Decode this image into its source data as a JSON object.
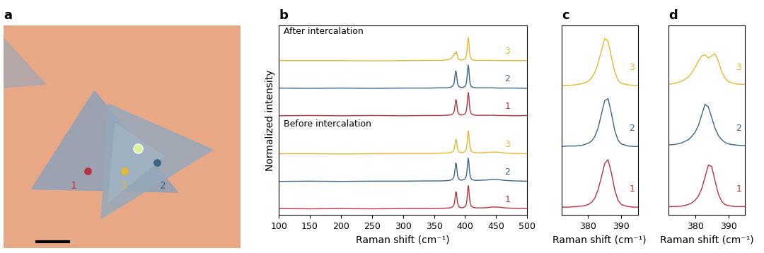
{
  "chart_data": [
    {
      "type": "image",
      "title": "a",
      "points": [
        {
          "label": "1",
          "color": "#b8323e"
        },
        {
          "label": "3",
          "color": "#e6b732"
        },
        {
          "label": "2",
          "color": "#3b6487"
        }
      ]
    },
    {
      "type": "line",
      "title": "b",
      "xlabel": "Raman shift (cm⁻¹)",
      "ylabel": "Normalized intensity",
      "tick_labels": "x",
      "xlim": [
        100,
        500
      ],
      "xticks": [
        100,
        150,
        200,
        250,
        300,
        350,
        400,
        450,
        500
      ],
      "ylim": [
        -0.25,
        7.7
      ],
      "x": [
        100,
        150,
        200,
        250,
        300,
        340,
        360,
        370,
        375,
        378,
        380,
        382,
        383,
        384,
        385,
        386,
        387,
        388,
        390,
        393,
        396,
        400,
        402,
        403,
        404,
        405,
        406,
        407,
        408,
        410,
        413,
        418,
        425,
        435,
        445,
        455,
        465,
        480,
        500
      ],
      "groups": [
        {
          "label": "After intercalation",
          "series": [
            {
              "name": "1",
              "color": "#b8323e",
              "offset": 3.9,
              "values": [
                0.01,
                0.02,
                0.01,
                0.02,
                0.01,
                0.02,
                0.02,
                0.03,
                0.04,
                0.06,
                0.09,
                0.16,
                0.28,
                0.48,
                0.68,
                0.64,
                0.4,
                0.2,
                0.08,
                0.04,
                0.05,
                0.09,
                0.22,
                0.42,
                0.72,
                0.98,
                0.84,
                0.48,
                0.24,
                0.09,
                0.05,
                0.03,
                0.03,
                0.03,
                0.03,
                0.02,
                0.02,
                0.01,
                0.02
              ]
            },
            {
              "name": "2",
              "color": "#3b6487",
              "offset": 5.05,
              "values": [
                0.02,
                0.01,
                0.02,
                0.01,
                0.02,
                0.02,
                0.03,
                0.03,
                0.05,
                0.07,
                0.11,
                0.2,
                0.36,
                0.58,
                0.74,
                0.66,
                0.4,
                0.2,
                0.08,
                0.05,
                0.05,
                0.09,
                0.22,
                0.44,
                0.74,
                0.99,
                0.84,
                0.46,
                0.22,
                0.09,
                0.05,
                0.03,
                0.03,
                0.03,
                0.03,
                0.02,
                0.02,
                0.02,
                0.01
              ]
            },
            {
              "name": "3",
              "color": "#e6b732",
              "offset": 6.2,
              "values": [
                0.02,
                0.02,
                0.02,
                0.01,
                0.02,
                0.03,
                0.03,
                0.05,
                0.08,
                0.12,
                0.18,
                0.28,
                0.34,
                0.3,
                0.32,
                0.4,
                0.3,
                0.16,
                0.07,
                0.05,
                0.05,
                0.09,
                0.22,
                0.44,
                0.76,
                0.99,
                0.82,
                0.44,
                0.2,
                0.08,
                0.05,
                0.03,
                0.03,
                0.03,
                0.03,
                0.02,
                0.02,
                0.02,
                0.02
              ]
            }
          ]
        },
        {
          "label": "Before intercalation",
          "series": [
            {
              "name": "1",
              "color": "#b8323e",
              "offset": 0,
              "values": [
                0.02,
                0.01,
                0.02,
                0.01,
                0.02,
                0.02,
                0.03,
                0.04,
                0.05,
                0.07,
                0.1,
                0.18,
                0.3,
                0.5,
                0.72,
                0.7,
                0.45,
                0.25,
                0.1,
                0.06,
                0.06,
                0.1,
                0.22,
                0.4,
                0.7,
                0.98,
                0.85,
                0.5,
                0.28,
                0.12,
                0.07,
                0.05,
                0.05,
                0.06,
                0.09,
                0.08,
                0.05,
                0.03,
                0.02
              ]
            },
            {
              "name": "2",
              "color": "#3b6487",
              "offset": 1.15,
              "values": [
                0.01,
                0.02,
                0.01,
                0.02,
                0.02,
                0.03,
                0.03,
                0.04,
                0.05,
                0.08,
                0.11,
                0.2,
                0.34,
                0.56,
                0.78,
                0.74,
                0.46,
                0.24,
                0.1,
                0.06,
                0.07,
                0.11,
                0.24,
                0.44,
                0.74,
                0.99,
                0.84,
                0.48,
                0.26,
                0.11,
                0.07,
                0.05,
                0.06,
                0.07,
                0.1,
                0.08,
                0.05,
                0.03,
                0.02
              ]
            },
            {
              "name": "3",
              "color": "#e6b732",
              "offset": 2.3,
              "values": [
                0.02,
                0.02,
                0.01,
                0.02,
                0.03,
                0.03,
                0.04,
                0.05,
                0.06,
                0.08,
                0.11,
                0.18,
                0.3,
                0.46,
                0.62,
                0.6,
                0.4,
                0.22,
                0.1,
                0.07,
                0.07,
                0.11,
                0.23,
                0.42,
                0.72,
                0.97,
                0.86,
                0.52,
                0.28,
                0.12,
                0.08,
                0.06,
                0.06,
                0.07,
                0.09,
                0.08,
                0.05,
                0.03,
                0.02
              ]
            }
          ]
        }
      ]
    },
    {
      "type": "line",
      "title": "c",
      "xlabel": "Raman shift (cm⁻¹)",
      "tick_labels": "x",
      "xlim": [
        372,
        395
      ],
      "xticks": [
        380,
        390
      ],
      "ylim": [
        -0.1,
        3.5
      ],
      "x": [
        372,
        374,
        376,
        378,
        379,
        380,
        381,
        382,
        383,
        384,
        385,
        386,
        387,
        388,
        389,
        390,
        392,
        394,
        395
      ],
      "groups": [
        {
          "series": [
            {
              "name": "1",
              "color": "#b8323e",
              "offset": 0,
              "values": [
                0.05,
                0.05,
                0.06,
                0.07,
                0.08,
                0.1,
                0.14,
                0.22,
                0.38,
                0.62,
                0.88,
                0.95,
                0.7,
                0.38,
                0.18,
                0.1,
                0.06,
                0.05,
                0.05
              ]
            },
            {
              "name": "2",
              "color": "#3b6487",
              "offset": 1.15,
              "values": [
                0.05,
                0.06,
                0.06,
                0.07,
                0.09,
                0.11,
                0.15,
                0.24,
                0.4,
                0.66,
                0.92,
                0.96,
                0.68,
                0.36,
                0.17,
                0.1,
                0.06,
                0.05,
                0.05
              ]
            },
            {
              "name": "3",
              "color": "#e6b732",
              "offset": 2.3,
              "values": [
                0.06,
                0.06,
                0.07,
                0.09,
                0.11,
                0.14,
                0.2,
                0.3,
                0.48,
                0.72,
                0.95,
                0.9,
                0.6,
                0.32,
                0.16,
                0.1,
                0.07,
                0.06,
                0.06
              ]
            }
          ]
        }
      ]
    },
    {
      "type": "line",
      "title": "d",
      "xlabel": "Raman shift (cm⁻¹)",
      "tick_labels": "x",
      "xlim": [
        372,
        395
      ],
      "xticks": [
        380,
        390
      ],
      "ylim": [
        -0.1,
        3.5
      ],
      "x": [
        372,
        374,
        376,
        378,
        379,
        380,
        381,
        382,
        383,
        384,
        385,
        386,
        387,
        388,
        389,
        390,
        392,
        394,
        395
      ],
      "groups": [
        {
          "series": [
            {
              "name": "1",
              "color": "#b8323e",
              "offset": 0,
              "values": [
                0.06,
                0.06,
                0.07,
                0.1,
                0.13,
                0.18,
                0.26,
                0.4,
                0.62,
                0.85,
                0.82,
                0.55,
                0.3,
                0.16,
                0.1,
                0.08,
                0.06,
                0.06,
                0.06
              ]
            },
            {
              "name": "2",
              "color": "#3b6487",
              "offset": 1.15,
              "values": [
                0.08,
                0.09,
                0.12,
                0.18,
                0.24,
                0.32,
                0.45,
                0.65,
                0.85,
                0.8,
                0.6,
                0.4,
                0.26,
                0.18,
                0.13,
                0.1,
                0.08,
                0.07,
                0.07
              ]
            },
            {
              "name": "3",
              "color": "#e6b732",
              "offset": 2.3,
              "values": [
                0.08,
                0.1,
                0.14,
                0.22,
                0.3,
                0.4,
                0.52,
                0.62,
                0.64,
                0.58,
                0.62,
                0.66,
                0.52,
                0.32,
                0.2,
                0.13,
                0.09,
                0.08,
                0.08
              ]
            }
          ]
        }
      ]
    }
  ]
}
